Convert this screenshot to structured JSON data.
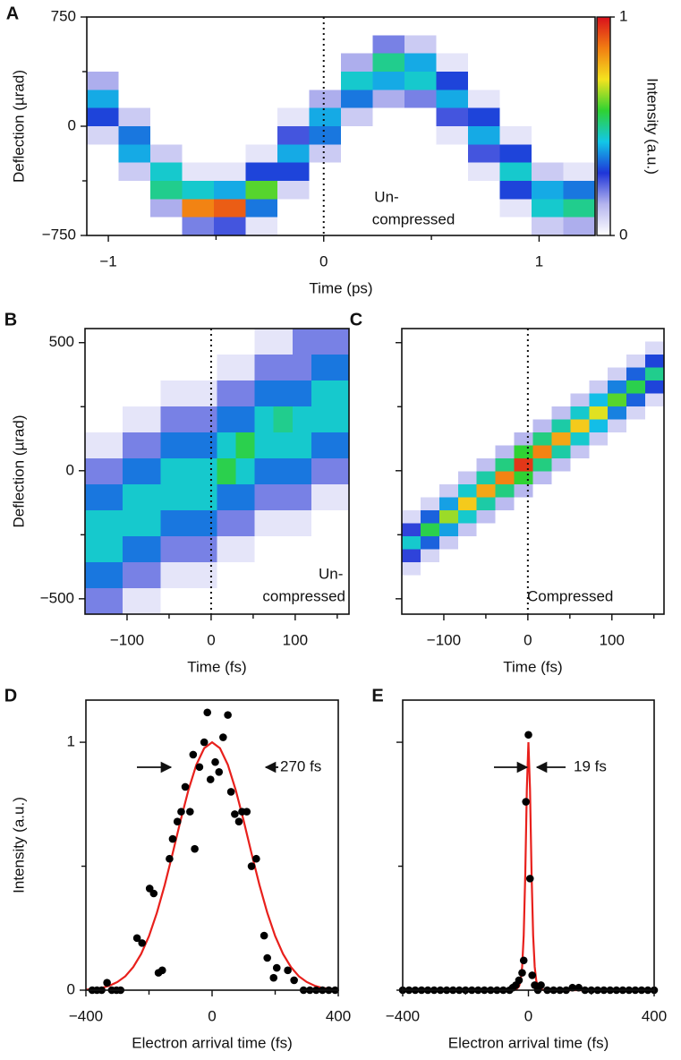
{
  "chart_data": [
    {
      "panel": "A",
      "type": "heatmap",
      "xlabel": "Time (ps)",
      "ylabel": "Deflection (µrad)",
      "xlim": [
        -1.1,
        1.26
      ],
      "ylim": [
        -750,
        750
      ],
      "xticks": [
        {
          "value": -1,
          "label": "−1"
        },
        0,
        1
      ],
      "xminor": [
        -0.5,
        0.5
      ],
      "yticks": [
        {
          "value": -750,
          "label": "−750"
        },
        0,
        750
      ],
      "yminor": [
        -375,
        375
      ],
      "vline": 0,
      "annotation": [
        "Un-",
        "compressed"
      ],
      "colorbar": {
        "label": "Intensity (a.u.)",
        "lim": [
          0,
          1
        ],
        "ticks": [
          0,
          1
        ],
        "colormap": [
          "#ffffff",
          "#b4b4ee",
          "#1f35d8",
          "#12c7e8",
          "#2fd232",
          "#f4e31f",
          "#f27e12",
          "#d9101c"
        ]
      },
      "z": [
        [
          0,
          0,
          0,
          0,
          0,
          0,
          0,
          0,
          0,
          0,
          0,
          0,
          0,
          0,
          0,
          0
        ],
        [
          0,
          0,
          0,
          0,
          0,
          0,
          0,
          0,
          0,
          0.2,
          0.1,
          0,
          0,
          0,
          0,
          0
        ],
        [
          0,
          0,
          0,
          0,
          0,
          0,
          0,
          0,
          0.15,
          0.5,
          0.4,
          0.05,
          0,
          0,
          0,
          0
        ],
        [
          0.15,
          0,
          0,
          0,
          0,
          0,
          0,
          0,
          0.45,
          0.4,
          0.45,
          0.3,
          0,
          0,
          0,
          0
        ],
        [
          0.4,
          0,
          0,
          0,
          0,
          0,
          0,
          0.15,
          0.35,
          0.15,
          0.2,
          0.4,
          0.05,
          0,
          0,
          0
        ],
        [
          0.3,
          0.1,
          0,
          0,
          0,
          0,
          0.05,
          0.4,
          0.1,
          0,
          0,
          0.25,
          0.3,
          0,
          0,
          0
        ],
        [
          0.08,
          0.35,
          0,
          0,
          0,
          0,
          0.25,
          0.35,
          0,
          0,
          0,
          0.05,
          0.4,
          0.05,
          0,
          0
        ],
        [
          0,
          0.4,
          0.1,
          0,
          0,
          0.05,
          0.4,
          0.1,
          0,
          0,
          0,
          0,
          0.25,
          0.3,
          0,
          0
        ],
        [
          0,
          0.1,
          0.45,
          0.05,
          0.05,
          0.3,
          0.3,
          0,
          0,
          0,
          0,
          0,
          0.05,
          0.45,
          0.1,
          0.05
        ],
        [
          0,
          0,
          0.5,
          0.45,
          0.4,
          0.6,
          0.08,
          0,
          0,
          0,
          0,
          0,
          0,
          0.3,
          0.4,
          0.35
        ],
        [
          0,
          0,
          0.15,
          0.85,
          0.9,
          0.35,
          0,
          0,
          0,
          0,
          0,
          0,
          0,
          0.05,
          0.45,
          0.5
        ],
        [
          0,
          0,
          0,
          0.2,
          0.25,
          0.05,
          0,
          0,
          0,
          0,
          0,
          0,
          0,
          0,
          0.1,
          0.15
        ]
      ]
    },
    {
      "panel": "B",
      "type": "heatmap",
      "xlabel": "Time (fs)",
      "ylabel": "Deflection (µrad)",
      "xlim": [
        -150,
        164
      ],
      "ylim": [
        -560,
        555
      ],
      "xticks": [
        {
          "value": -100,
          "label": "−100"
        },
        0,
        100
      ],
      "xminor": [
        -50,
        50,
        150
      ],
      "yticks": [
        {
          "value": -500,
          "label": "−500"
        },
        0,
        500
      ],
      "yminor": [
        -250,
        250
      ],
      "vline": 0,
      "annotation": [
        "Un-",
        "compressed"
      ],
      "z": [
        [
          0,
          0,
          0,
          0,
          0,
          0,
          0,
          0,
          0,
          0.05,
          0.05,
          0.2,
          0.2,
          0.2
        ],
        [
          0,
          0,
          0,
          0,
          0,
          0,
          0,
          0.05,
          0.05,
          0.2,
          0.2,
          0.2,
          0.35,
          0.35
        ],
        [
          0,
          0,
          0,
          0,
          0.05,
          0.05,
          0.05,
          0.2,
          0.2,
          0.35,
          0.35,
          0.35,
          0.45,
          0.45
        ],
        [
          0,
          0,
          0.05,
          0.05,
          0.2,
          0.2,
          0.2,
          0.35,
          0.35,
          0.45,
          0.5,
          0.45,
          0.45,
          0.45
        ],
        [
          0.05,
          0.05,
          0.2,
          0.2,
          0.35,
          0.35,
          0.35,
          0.45,
          0.55,
          0.45,
          0.45,
          0.45,
          0.35,
          0.35
        ],
        [
          0.2,
          0.2,
          0.35,
          0.35,
          0.45,
          0.45,
          0.45,
          0.55,
          0.45,
          0.35,
          0.35,
          0.35,
          0.2,
          0.2
        ],
        [
          0.35,
          0.35,
          0.45,
          0.45,
          0.45,
          0.45,
          0.45,
          0.35,
          0.35,
          0.2,
          0.2,
          0.2,
          0.05,
          0.05
        ],
        [
          0.45,
          0.45,
          0.45,
          0.45,
          0.35,
          0.35,
          0.35,
          0.2,
          0.2,
          0.05,
          0.05,
          0.05,
          0,
          0
        ],
        [
          0.45,
          0.45,
          0.35,
          0.35,
          0.2,
          0.2,
          0.2,
          0.05,
          0.05,
          0,
          0,
          0,
          0,
          0
        ],
        [
          0.35,
          0.35,
          0.2,
          0.2,
          0.05,
          0.05,
          0.05,
          0,
          0,
          0,
          0,
          0,
          0,
          0
        ],
        [
          0.2,
          0.2,
          0.05,
          0.05,
          0,
          0,
          0,
          0,
          0,
          0,
          0,
          0,
          0,
          0
        ]
      ]
    },
    {
      "panel": "C",
      "type": "heatmap",
      "xlabel": "Time (fs)",
      "xlim": [
        -150,
        162
      ],
      "ylim": [
        -560,
        555
      ],
      "xticks": [
        {
          "value": -100,
          "label": "−100"
        },
        0,
        100
      ],
      "xminor": [
        -50,
        50,
        150
      ],
      "yticks_unlabeled": [
        -500,
        0,
        500
      ],
      "yminor": [
        -250,
        250
      ],
      "vline": 0,
      "annotation": [
        "Compressed"
      ],
      "z": [
        [
          0,
          0,
          0,
          0,
          0,
          0,
          0,
          0,
          0,
          0,
          0,
          0,
          0,
          0
        ],
        [
          0,
          0,
          0,
          0,
          0,
          0,
          0,
          0,
          0,
          0,
          0,
          0,
          0,
          0.07
        ],
        [
          0,
          0,
          0,
          0,
          0,
          0,
          0,
          0,
          0,
          0,
          0,
          0,
          0.08,
          0.3
        ],
        [
          0,
          0,
          0,
          0,
          0,
          0,
          0,
          0,
          0,
          0,
          0,
          0.09,
          0.33,
          0.5
        ],
        [
          0,
          0,
          0,
          0,
          0,
          0,
          0,
          0,
          0,
          0,
          0.1,
          0.36,
          0.55,
          0.3
        ],
        [
          0,
          0,
          0,
          0,
          0,
          0,
          0,
          0,
          0,
          0.11,
          0.42,
          0.6,
          0.33,
          0.07
        ],
        [
          0,
          0,
          0,
          0,
          0,
          0,
          0,
          0,
          0.12,
          0.45,
          0.7,
          0.36,
          0.08,
          0
        ],
        [
          0,
          0,
          0,
          0,
          0,
          0,
          0,
          0.13,
          0.48,
          0.75,
          0.42,
          0.09,
          0,
          0
        ],
        [
          0,
          0,
          0,
          0,
          0,
          0,
          0.14,
          0.51,
          0.8,
          0.45,
          0.1,
          0,
          0,
          0
        ],
        [
          0,
          0,
          0,
          0,
          0,
          0.13,
          0.57,
          0.85,
          0.48,
          0.11,
          0,
          0,
          0,
          0
        ],
        [
          0,
          0,
          0,
          0,
          0.12,
          0.51,
          0.95,
          0.51,
          0.12,
          0,
          0,
          0,
          0,
          0
        ],
        [
          0,
          0,
          0,
          0.11,
          0.48,
          0.85,
          0.57,
          0.13,
          0,
          0,
          0,
          0,
          0,
          0
        ],
        [
          0,
          0,
          0.1,
          0.45,
          0.8,
          0.51,
          0.14,
          0,
          0,
          0,
          0,
          0,
          0,
          0
        ],
        [
          0,
          0.08,
          0.39,
          0.75,
          0.48,
          0.13,
          0,
          0,
          0,
          0,
          0,
          0,
          0,
          0
        ],
        [
          0.07,
          0.33,
          0.65,
          0.45,
          0.12,
          0,
          0,
          0,
          0,
          0,
          0,
          0,
          0,
          0
        ],
        [
          0.27,
          0.55,
          0.39,
          0.11,
          0,
          0,
          0,
          0,
          0,
          0,
          0,
          0,
          0,
          0
        ],
        [
          0.45,
          0.33,
          0.1,
          0,
          0,
          0,
          0,
          0,
          0,
          0,
          0,
          0,
          0,
          0
        ],
        [
          0.27,
          0.08,
          0,
          0,
          0,
          0,
          0,
          0,
          0,
          0,
          0,
          0,
          0,
          0
        ],
        [
          0.07,
          0,
          0,
          0,
          0,
          0,
          0,
          0,
          0,
          0,
          0,
          0,
          0,
          0
        ],
        [
          0,
          0,
          0,
          0,
          0,
          0,
          0,
          0,
          0,
          0,
          0,
          0,
          0,
          0
        ],
        [
          0,
          0,
          0,
          0,
          0,
          0,
          0,
          0,
          0,
          0,
          0,
          0,
          0,
          0
        ],
        [
          0,
          0,
          0,
          0,
          0,
          0,
          0,
          0,
          0,
          0,
          0,
          0,
          0,
          0
        ]
      ]
    },
    {
      "panel": "D",
      "type": "scatter",
      "xlabel": "Electron arrival time (fs)",
      "ylabel": "Intensity (a.u.)",
      "xlim": [
        -400,
        400
      ],
      "ylim": [
        0,
        1.17
      ],
      "xticks": [
        {
          "value": -400,
          "label": "−400"
        },
        0,
        400
      ],
      "xminor": [
        -200,
        200
      ],
      "yticks": [
        0,
        1
      ],
      "yminor": [
        0.5
      ],
      "annotation": "270 fs",
      "points": {
        "color": "#000000",
        "x": [
          -380,
          -365,
          -350,
          -333,
          -318,
          -303,
          -290,
          -238,
          -222,
          -198,
          -185,
          -170,
          -158,
          -135,
          -125,
          -110,
          -98,
          -85,
          -70,
          -60,
          -55,
          -40,
          -25,
          -15,
          -5,
          10,
          22,
          35,
          50,
          60,
          72,
          85,
          95,
          110,
          125,
          140,
          165,
          175,
          195,
          205,
          240,
          260,
          290,
          310,
          330,
          350,
          370,
          390
        ],
        "values": [
          0,
          0,
          0,
          0.03,
          0,
          0,
          0,
          0.21,
          0.19,
          0.41,
          0.39,
          0.07,
          0.08,
          0.53,
          0.61,
          0.68,
          0.72,
          0.82,
          0.72,
          0.95,
          0.57,
          0.9,
          1,
          1.12,
          0.85,
          0.92,
          0.88,
          1.02,
          1.11,
          0.8,
          0.71,
          0.68,
          0.72,
          0.72,
          0.5,
          0.53,
          0.22,
          0.13,
          0.05,
          0.09,
          0.08,
          0.04,
          0,
          0,
          0,
          0,
          0,
          0
        ]
      },
      "fit": {
        "color": "#e8201c",
        "x": [
          -400,
          -375,
          -350,
          -325,
          -300,
          -275,
          -250,
          -225,
          -200,
          -175,
          -150,
          -125,
          -100,
          -75,
          -50,
          -25,
          0,
          25,
          50,
          75,
          100,
          125,
          150,
          175,
          200,
          225,
          250,
          275,
          300,
          325,
          350,
          375,
          400
        ],
        "values": [
          0.002,
          0.005,
          0.009,
          0.018,
          0.033,
          0.056,
          0.093,
          0.146,
          0.218,
          0.312,
          0.425,
          0.552,
          0.684,
          0.807,
          0.909,
          0.976,
          1,
          0.976,
          0.909,
          0.807,
          0.684,
          0.552,
          0.425,
          0.312,
          0.218,
          0.146,
          0.093,
          0.056,
          0.033,
          0.018,
          0.009,
          0.005,
          0.002
        ]
      }
    },
    {
      "panel": "E",
      "type": "scatter",
      "xlabel": "Electron arrival time (fs)",
      "xlim": [
        -400,
        400
      ],
      "ylim": [
        0,
        1.17
      ],
      "xticks": [
        {
          "value": -400,
          "label": "−400"
        },
        0,
        400
      ],
      "xminor": [
        -200,
        200
      ],
      "yticks_unlabeled": [
        0,
        1
      ],
      "yminor": [
        0.5
      ],
      "annotation": "19 fs",
      "points": {
        "color": "#000000",
        "x": [
          -400,
          -380,
          -360,
          -340,
          -320,
          -300,
          -280,
          -260,
          -240,
          -220,
          -200,
          -180,
          -160,
          -140,
          -120,
          -100,
          -80,
          -60,
          -50,
          -40,
          -30,
          -20,
          -15,
          -8,
          0,
          5,
          12,
          20,
          30,
          40,
          60,
          80,
          100,
          120,
          140,
          160,
          180,
          200,
          220,
          240,
          260,
          280,
          300,
          320,
          340,
          360,
          380,
          400
        ],
        "values": [
          0,
          0,
          0,
          0,
          0,
          0,
          0,
          0,
          0,
          0,
          0,
          0,
          0,
          0,
          0,
          0,
          0,
          0,
          0.01,
          0.02,
          0.04,
          0.07,
          0.12,
          0.76,
          1.03,
          0.45,
          0.06,
          0.02,
          0,
          0.02,
          0,
          0,
          0,
          0,
          0.01,
          0.01,
          0,
          0,
          0,
          0,
          0,
          0,
          0,
          0,
          0,
          0,
          0,
          0
        ]
      },
      "fit": {
        "color": "#e8201c",
        "x": [
          -400,
          -200,
          -100,
          -60,
          -40,
          -30,
          -25,
          -20,
          -15,
          -10,
          -5,
          0,
          5,
          10,
          15,
          20,
          25,
          30,
          40,
          60,
          100,
          200,
          400
        ],
        "values": [
          0,
          0,
          0,
          0,
          0.002,
          0.015,
          0.038,
          0.094,
          0.221,
          0.47,
          0.812,
          1,
          0.812,
          0.47,
          0.221,
          0.094,
          0.038,
          0.015,
          0.002,
          0,
          0,
          0,
          0
        ]
      }
    }
  ]
}
